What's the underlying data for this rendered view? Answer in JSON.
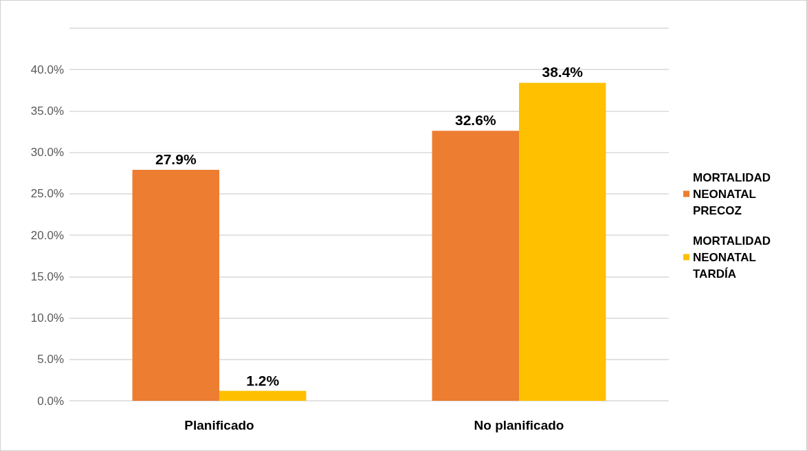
{
  "chart_data": {
    "type": "bar",
    "categories": [
      "Planificado",
      "No planificado"
    ],
    "series": [
      {
        "name": "MORTALIDAD NEONATAL PRECOZ",
        "color": "#ed7d31",
        "values": [
          27.9,
          32.6
        ],
        "value_labels": [
          "27.9%",
          "32.6%"
        ]
      },
      {
        "name": "MORTALIDAD NEONATAL TARDÍA",
        "color": "#ffc000",
        "values": [
          1.2,
          38.4
        ],
        "value_labels": [
          "1.2%",
          "38.4%"
        ]
      }
    ],
    "ylim": [
      0,
      45
    ],
    "yticks": [
      {
        "value": 0,
        "label": "0.0%"
      },
      {
        "value": 5,
        "label": "5.0%"
      },
      {
        "value": 10,
        "label": "10.0%"
      },
      {
        "value": 15,
        "label": "15.0%"
      },
      {
        "value": 20,
        "label": "20.0%"
      },
      {
        "value": 25,
        "label": "25.0%"
      },
      {
        "value": 30,
        "label": "30.0%"
      },
      {
        "value": 35,
        "label": "35.0%"
      },
      {
        "value": 40,
        "label": "40.0%"
      },
      {
        "value": 45,
        "label": null
      }
    ],
    "grid": "y",
    "legend": "right"
  }
}
